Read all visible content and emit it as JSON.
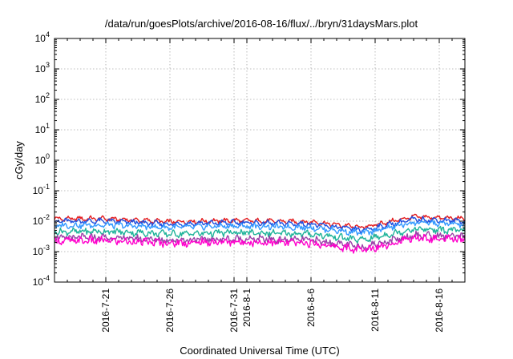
{
  "chart_data": {
    "type": "line",
    "title": "/data/run/goesPlots/archive/2016-08-16/flux/../bryn/31daysMars.plot",
    "xlabel": "Coordinated Universal Time (UTC)",
    "ylabel": "cGy/day",
    "y_scale": "log",
    "ylim": [
      0.0001,
      10000
    ],
    "xlim": [
      "2016-07-17",
      "2016-08-18"
    ],
    "y_ticks": [
      {
        "base": "10",
        "exp": "-4"
      },
      {
        "base": "10",
        "exp": "-3"
      },
      {
        "base": "10",
        "exp": "-2"
      },
      {
        "base": "10",
        "exp": "-1"
      },
      {
        "base": "10",
        "exp": "0"
      },
      {
        "base": "10",
        "exp": "1"
      },
      {
        "base": "10",
        "exp": "2"
      },
      {
        "base": "10",
        "exp": "3"
      },
      {
        "base": "10",
        "exp": "4"
      }
    ],
    "x_ticks": [
      "2016-7-21",
      "2016-7-26",
      "2016-7-31",
      "2016-8-1",
      "2016-8-6",
      "2016-8-11",
      "2016-8-16"
    ],
    "grid": true,
    "legend": "none",
    "series": [
      {
        "color": "#e41a1c",
        "x": [
          "2016-07-17",
          "2016-07-21",
          "2016-07-26",
          "2016-07-31",
          "2016-08-06",
          "2016-08-10",
          "2016-08-14",
          "2016-08-18"
        ],
        "y": [
          0.012,
          0.012,
          0.0095,
          0.0105,
          0.0095,
          0.0062,
          0.014,
          0.012
        ]
      },
      {
        "color": "#1f4fe0",
        "x": [
          "2016-07-17",
          "2016-07-21",
          "2016-07-26",
          "2016-07-31",
          "2016-08-06",
          "2016-08-10",
          "2016-08-14",
          "2016-08-18"
        ],
        "y": [
          0.01,
          0.01,
          0.008,
          0.009,
          0.008,
          0.005,
          0.0115,
          0.01
        ]
      },
      {
        "color": "#3399ff",
        "x": [
          "2016-07-17",
          "2016-07-21",
          "2016-07-26",
          "2016-07-31",
          "2016-08-06",
          "2016-08-10",
          "2016-08-14",
          "2016-08-18"
        ],
        "y": [
          0.0072,
          0.0075,
          0.0062,
          0.007,
          0.0062,
          0.004,
          0.009,
          0.0078
        ]
      },
      {
        "color": "#1fb39a",
        "x": [
          "2016-07-17",
          "2016-07-21",
          "2016-07-26",
          "2016-07-31",
          "2016-08-06",
          "2016-08-10",
          "2016-08-14",
          "2016-08-18"
        ],
        "y": [
          0.0045,
          0.0046,
          0.0038,
          0.0042,
          0.0038,
          0.0024,
          0.0055,
          0.0048
        ]
      },
      {
        "color": "#9b3fa8",
        "x": [
          "2016-07-17",
          "2016-07-21",
          "2016-07-26",
          "2016-07-31",
          "2016-08-06",
          "2016-08-10",
          "2016-08-14",
          "2016-08-18"
        ],
        "y": [
          0.0028,
          0.0029,
          0.0024,
          0.0026,
          0.0024,
          0.0014,
          0.0035,
          0.003
        ]
      },
      {
        "color": "#ff00cc",
        "x": [
          "2016-07-17",
          "2016-07-21",
          "2016-07-26",
          "2016-07-31",
          "2016-08-06",
          "2016-08-10",
          "2016-08-14",
          "2016-08-18"
        ],
        "y": [
          0.0022,
          0.0023,
          0.0019,
          0.0021,
          0.0019,
          0.0011,
          0.0028,
          0.0024
        ]
      }
    ]
  }
}
